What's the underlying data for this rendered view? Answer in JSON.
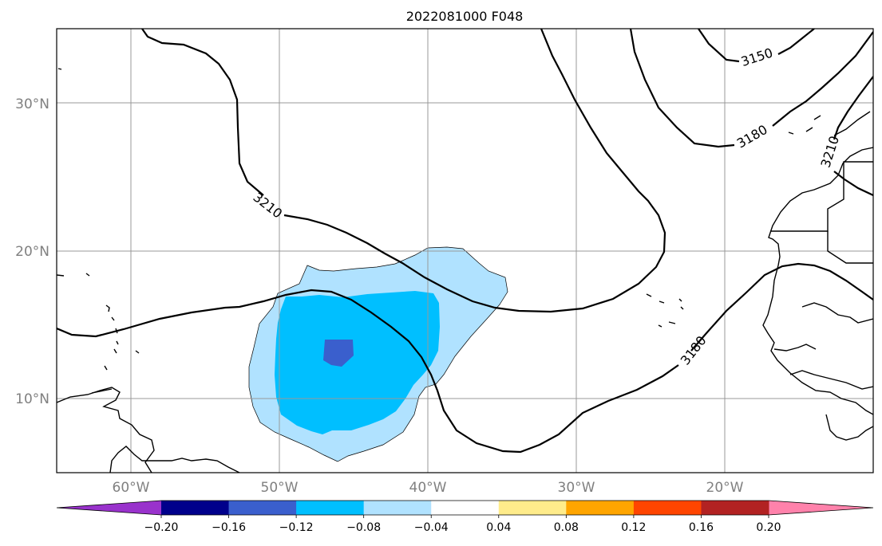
{
  "title": "2022081000 F048",
  "map": {
    "projection": "PlateCarree",
    "lon_range": [
      -65,
      -10
    ],
    "lat_range": [
      5,
      35
    ],
    "gridlines": true,
    "lat_ticks": [
      "10°N",
      "20°N",
      "30°N"
    ],
    "lon_ticks": [
      "60°W",
      "50°W",
      "40°W",
      "30°W",
      "20°W"
    ]
  },
  "contours": {
    "labels": [
      "3150",
      "3180",
      "3180",
      "3210",
      "3210"
    ]
  },
  "colorbar": {
    "extend": "both",
    "tick_labels": [
      "−0.20",
      "−0.16",
      "−0.12",
      "−0.08",
      "−0.04",
      "0.04",
      "0.08",
      "0.12",
      "0.16",
      "0.20"
    ],
    "colors": [
      "#9932cc",
      "#00008b",
      "#3a5fcd",
      "#00bfff",
      "#b0e2ff",
      "#ffffff",
      "#ffec8b",
      "#ffa500",
      "#ff4500",
      "#b22222",
      "#ff82ab"
    ]
  }
}
